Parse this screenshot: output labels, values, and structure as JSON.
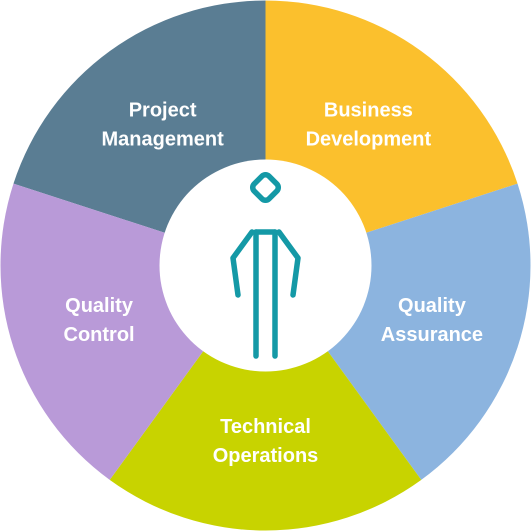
{
  "segments": [
    {
      "id": "project-management",
      "lines": [
        "Project",
        "Management"
      ],
      "color": "#5a7d93"
    },
    {
      "id": "business-development",
      "lines": [
        "Business",
        "Development"
      ],
      "color": "#fbc02d"
    },
    {
      "id": "quality-assurance",
      "lines": [
        "Quality",
        "Assurance"
      ],
      "color": "#8cb4df"
    },
    {
      "id": "technical-operations",
      "lines": [
        "Technical",
        "Operations"
      ],
      "color": "#c8d300"
    },
    {
      "id": "quality-control",
      "lines": [
        "Quality",
        "Control"
      ],
      "color": "#b99ad8"
    }
  ],
  "center": {
    "icon": "person-icon",
    "background": "#ffffff",
    "icon_color": "#1499a6"
  }
}
